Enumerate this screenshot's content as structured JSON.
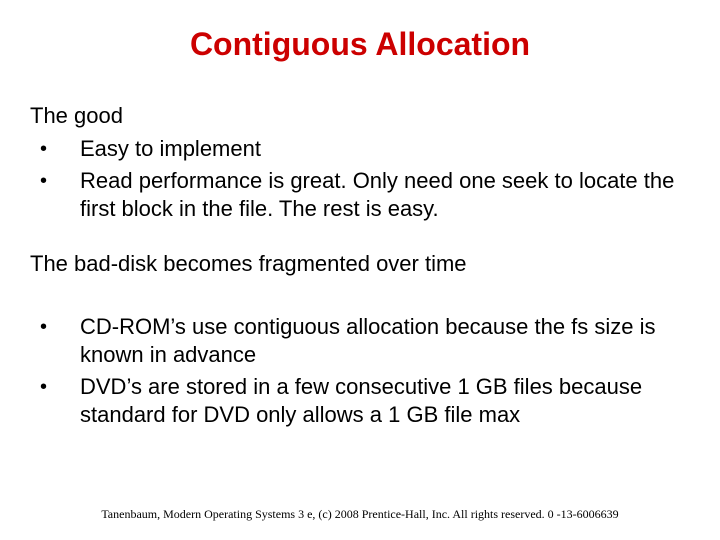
{
  "title": {
    "text": "Contiguous Allocation",
    "color": "#cc0000",
    "fontsize": 32
  },
  "good": {
    "heading": "The good",
    "bullets": [
      "Easy to implement",
      "Read performance is great. Only need one seek to locate the first block in the file. The rest is easy."
    ]
  },
  "bad": {
    "text": "The bad-disk becomes fragmented over time"
  },
  "notes": {
    "bullets": [
      "CD-ROM’s use contiguous allocation because the fs size is known in advance",
      "DVD’s are stored in a few consecutive 1 GB files because standard for DVD only allows a 1 GB file max"
    ]
  },
  "footer": {
    "text": "Tanenbaum, Modern Operating Systems 3 e, (c) 2008 Prentice-Hall, Inc. All rights reserved. 0 -13-6006639"
  },
  "style": {
    "body_fontsize": 22,
    "body_color": "#000000",
    "bullet_marker": "•",
    "background": "#ffffff",
    "footer_fontsize": 12
  }
}
